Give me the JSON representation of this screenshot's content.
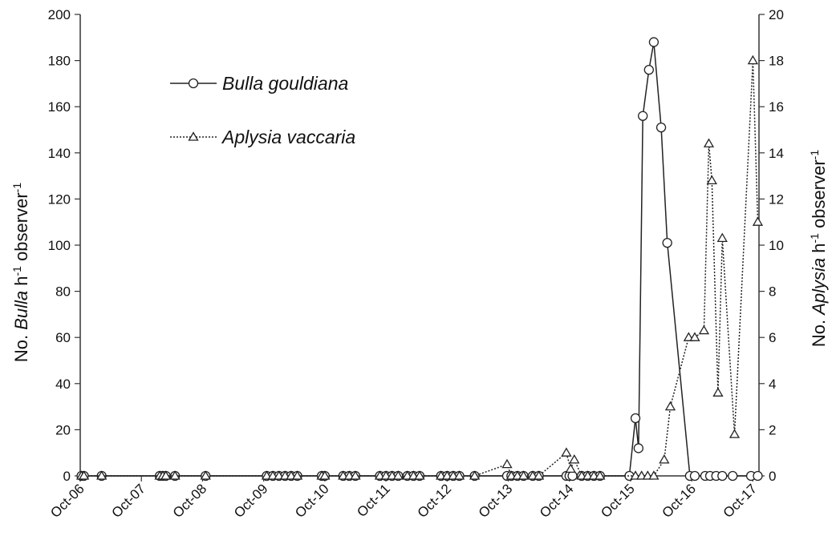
{
  "chart_data": {
    "type": "line",
    "x_tick_labels": [
      "Oct-06",
      "Oct-07",
      "Oct-08",
      "Oct-09",
      "Oct-10",
      "Oct-11",
      "Oct-12",
      "Oct-13",
      "Oct-14",
      "Oct-15",
      "Oct-16",
      "Oct-17"
    ],
    "y_left": {
      "label_prefix": "No. ",
      "label_italic": "Bulla",
      "label_suffix": " h",
      "label_sup": "-1",
      "label_tail": " observer",
      "label_sup2": "-1",
      "ylim": [
        0,
        200
      ],
      "ticks": [
        0,
        20,
        40,
        60,
        80,
        100,
        120,
        140,
        160,
        180,
        200
      ]
    },
    "y_right": {
      "label_prefix": "No. ",
      "label_italic": "Aplysia",
      "label_suffix": " h",
      "label_sup": "-1",
      "label_tail": " observer",
      "label_sup2": "-1",
      "ylim": [
        0,
        20
      ],
      "ticks": [
        0,
        2,
        4,
        6,
        8,
        10,
        12,
        14,
        16,
        18,
        20
      ]
    },
    "xlim": [
      2006,
      2017.1
    ],
    "grid": false,
    "legend_position": "top-left",
    "series": [
      {
        "name": "Bulla gouldiana",
        "axis": "left",
        "line": "solid",
        "marker": "circle",
        "x": [
          2006.02,
          2006.06,
          2006.35,
          2007.3,
          2007.35,
          2007.4,
          2007.55,
          2008.05,
          2009.05,
          2009.15,
          2009.25,
          2009.35,
          2009.45,
          2009.55,
          2009.95,
          2010.0,
          2010.3,
          2010.4,
          2010.5,
          2010.9,
          2011.0,
          2011.1,
          2011.2,
          2011.35,
          2011.45,
          2011.55,
          2011.9,
          2012.0,
          2012.1,
          2012.2,
          2012.45,
          2012.98,
          2013.05,
          2013.15,
          2013.25,
          2013.4,
          2013.5,
          2013.95,
          2014.0,
          2014.05,
          2014.2,
          2014.3,
          2014.4,
          2014.5,
          2014.98,
          2015.08,
          2015.13,
          2015.2,
          2015.3,
          2015.38,
          2015.5,
          2015.6,
          2015.97,
          2016.05,
          2016.22,
          2016.3,
          2016.4,
          2016.5,
          2016.67,
          2016.97,
          2017.08
        ],
        "y": [
          0,
          0,
          0,
          0,
          0,
          0,
          0,
          0,
          0,
          0,
          0,
          0,
          0,
          0,
          0,
          0,
          0,
          0,
          0,
          0,
          0,
          0,
          0,
          0,
          0,
          0,
          0,
          0,
          0,
          0,
          0,
          0,
          0,
          0,
          0,
          0,
          0,
          0,
          0,
          0,
          0,
          0,
          0,
          0,
          0,
          25,
          12,
          156,
          176,
          188,
          151,
          101,
          0,
          0,
          0,
          0,
          0,
          0,
          0,
          0,
          0
        ]
      },
      {
        "name": "Aplysia vaccaria",
        "axis": "right",
        "line": "dotted",
        "marker": "triangle",
        "x": [
          2006.02,
          2006.06,
          2006.35,
          2007.3,
          2007.35,
          2007.4,
          2007.55,
          2008.05,
          2009.05,
          2009.15,
          2009.25,
          2009.35,
          2009.45,
          2009.55,
          2009.95,
          2010.0,
          2010.3,
          2010.4,
          2010.5,
          2010.9,
          2011.0,
          2011.1,
          2011.2,
          2011.35,
          2011.45,
          2011.55,
          2011.9,
          2012.0,
          2012.1,
          2012.2,
          2012.45,
          2012.98,
          2013.05,
          2013.15,
          2013.25,
          2013.4,
          2013.5,
          2013.95,
          2014.02,
          2014.08,
          2014.2,
          2014.3,
          2014.4,
          2014.5,
          2015.08,
          2015.18,
          2015.28,
          2015.38,
          2015.55,
          2015.65,
          2015.95,
          2016.05,
          2016.2,
          2016.28,
          2016.33,
          2016.43,
          2016.5,
          2016.7,
          2017.0,
          2017.08
        ],
        "y": [
          0,
          0,
          0,
          0,
          0,
          0,
          0,
          0,
          0,
          0,
          0,
          0,
          0,
          0,
          0,
          0,
          0,
          0,
          0,
          0,
          0,
          0,
          0,
          0,
          0,
          0,
          0,
          0,
          0,
          0,
          0,
          0.5,
          0,
          0,
          0,
          0,
          0,
          1,
          0.3,
          0.7,
          0,
          0,
          0,
          0,
          0,
          0,
          0,
          0,
          0.7,
          3,
          6,
          6,
          6.3,
          14.4,
          12.8,
          3.6,
          10.3,
          1.8,
          18,
          11
        ]
      }
    ]
  }
}
